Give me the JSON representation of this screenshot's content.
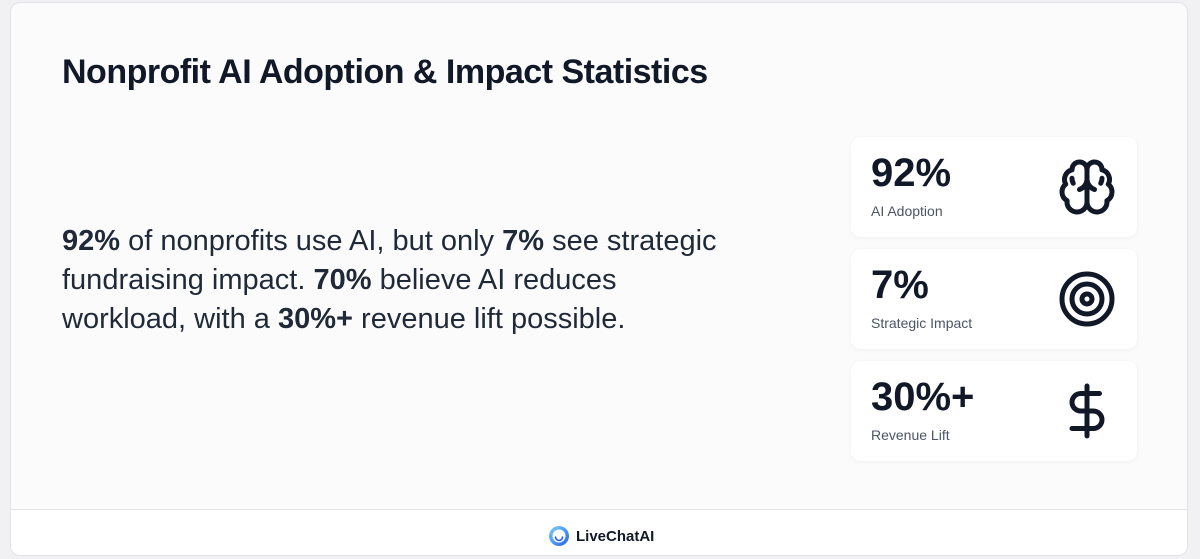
{
  "header": {
    "title": "Nonprofit AI Adoption & Impact Statistics"
  },
  "summary": {
    "runs": [
      {
        "text": "92%",
        "bold": true
      },
      {
        "text": " of nonprofits use AI, but only ",
        "bold": false
      },
      {
        "text": "7%",
        "bold": true
      },
      {
        "text": " see strategic fundraising impact. ",
        "bold": false
      },
      {
        "text": "70%",
        "bold": true
      },
      {
        "text": " believe AI reduces workload, with a ",
        "bold": false
      },
      {
        "text": "30%+",
        "bold": true
      },
      {
        "text": " revenue lift possible.",
        "bold": false
      }
    ]
  },
  "stats": [
    {
      "value": "92%",
      "label": "AI Adoption"
    },
    {
      "value": "7%",
      "label": "Strategic Impact"
    },
    {
      "value": "30%+",
      "label": "Revenue Lift"
    }
  ],
  "footer": {
    "brand": "LiveChatAI"
  }
}
